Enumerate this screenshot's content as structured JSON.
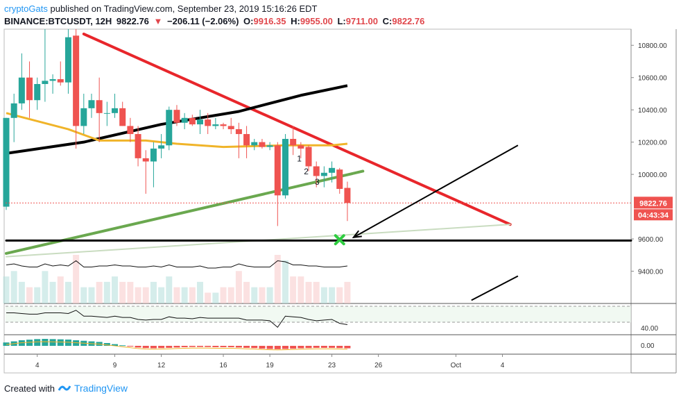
{
  "header": {
    "user": "cryptoGats",
    "published": "published on TradingView.com, September 23, 2019 15:16:26 EDT",
    "symbol": "BINANCE:BTCUSDT, 12H",
    "last": "9822.76",
    "change": "−206.11 (−2.06%)",
    "open_label": "O:",
    "open": "9916.35",
    "high_label": "H:",
    "high": "9955.00",
    "low_label": "L:",
    "low": "9711.00",
    "close_label": "C:",
    "close": "9822.76"
  },
  "footer": {
    "created_with": "Created with",
    "brand": "TradingView"
  },
  "colors": {
    "up": "#26a69a",
    "down": "#ef5350",
    "trend_red": "#e8262b",
    "trend_green": "#6aa84f",
    "ma_black": "#000000",
    "ma_yellow": "#f0b429",
    "cross": "#2ecc40"
  },
  "chart_data": {
    "type": "candlestick",
    "interval": "12H",
    "symbol": "BINANCE:BTCUSDT",
    "y_axis": {
      "min": 9200,
      "max": 10900,
      "ticks": [
        9400,
        9600,
        10000,
        10200,
        10400,
        10600,
        10800
      ],
      "tick_labels": [
        "9400.00",
        "9600.00",
        "10000.00",
        "10200.00",
        "10400.00",
        "10600.00",
        "10800.00"
      ]
    },
    "x_axis": {
      "ticks": [
        {
          "label": "4",
          "i": 4
        },
        {
          "label": "9",
          "i": 14
        },
        {
          "label": "12",
          "i": 20
        },
        {
          "label": "16",
          "i": 28
        },
        {
          "label": "19",
          "i": 34
        },
        {
          "label": "23",
          "i": 42
        },
        {
          "label": "26",
          "i": 48
        },
        {
          "label": "Oct",
          "i": 58
        },
        {
          "label": "4",
          "i": 64
        }
      ],
      "max_index": 66
    },
    "last_price_label": "9822.76",
    "countdown_label": "04:43:34",
    "candles": [
      {
        "o": 9800,
        "h": 10350,
        "l": 9780,
        "c": 10350
      },
      {
        "o": 10350,
        "h": 10500,
        "l": 10200,
        "c": 10440
      },
      {
        "o": 10440,
        "h": 10750,
        "l": 10400,
        "c": 10600
      },
      {
        "o": 10600,
        "h": 10700,
        "l": 10350,
        "c": 10460
      },
      {
        "o": 10460,
        "h": 10600,
        "l": 10400,
        "c": 10560
      },
      {
        "o": 10560,
        "h": 10900,
        "l": 10450,
        "c": 10580
      },
      {
        "o": 10580,
        "h": 10620,
        "l": 10500,
        "c": 10590
      },
      {
        "o": 10590,
        "h": 10700,
        "l": 10550,
        "c": 10570
      },
      {
        "o": 10570,
        "h": 10900,
        "l": 10500,
        "c": 10850
      },
      {
        "o": 10860,
        "h": 10900,
        "l": 10160,
        "c": 10300
      },
      {
        "o": 10300,
        "h": 10500,
        "l": 10250,
        "c": 10410
      },
      {
        "o": 10410,
        "h": 10500,
        "l": 10350,
        "c": 10460
      },
      {
        "o": 10460,
        "h": 10600,
        "l": 10200,
        "c": 10380
      },
      {
        "o": 10380,
        "h": 10450,
        "l": 10300,
        "c": 10380
      },
      {
        "o": 10380,
        "h": 10500,
        "l": 10350,
        "c": 10410
      },
      {
        "o": 10410,
        "h": 10450,
        "l": 10300,
        "c": 10300
      },
      {
        "o": 10300,
        "h": 10350,
        "l": 10200,
        "c": 10250
      },
      {
        "o": 10250,
        "h": 10300,
        "l": 10050,
        "c": 10100
      },
      {
        "o": 10100,
        "h": 10150,
        "l": 9880,
        "c": 10080
      },
      {
        "o": 10080,
        "h": 10200,
        "l": 9920,
        "c": 10160
      },
      {
        "o": 10160,
        "h": 10250,
        "l": 10100,
        "c": 10180
      },
      {
        "o": 10180,
        "h": 10420,
        "l": 10150,
        "c": 10400
      },
      {
        "o": 10400,
        "h": 10430,
        "l": 10300,
        "c": 10320
      },
      {
        "o": 10320,
        "h": 10380,
        "l": 10280,
        "c": 10350
      },
      {
        "o": 10350,
        "h": 10370,
        "l": 10300,
        "c": 10310
      },
      {
        "o": 10310,
        "h": 10400,
        "l": 10250,
        "c": 10340
      },
      {
        "o": 10340,
        "h": 10380,
        "l": 10250,
        "c": 10300
      },
      {
        "o": 10300,
        "h": 10350,
        "l": 10280,
        "c": 10310
      },
      {
        "o": 10310,
        "h": 10320,
        "l": 10280,
        "c": 10300
      },
      {
        "o": 10300,
        "h": 10350,
        "l": 10250,
        "c": 10280
      },
      {
        "o": 10280,
        "h": 10320,
        "l": 10100,
        "c": 10250
      },
      {
        "o": 10250,
        "h": 10300,
        "l": 10100,
        "c": 10180
      },
      {
        "o": 10180,
        "h": 10220,
        "l": 10150,
        "c": 10200
      },
      {
        "o": 10200,
        "h": 10220,
        "l": 10160,
        "c": 10170
      },
      {
        "o": 10170,
        "h": 10200,
        "l": 10150,
        "c": 10180
      },
      {
        "o": 10180,
        "h": 10200,
        "l": 9680,
        "c": 9870
      },
      {
        "o": 9870,
        "h": 10250,
        "l": 9850,
        "c": 10220
      },
      {
        "o": 10220,
        "h": 10300,
        "l": 10120,
        "c": 10180
      },
      {
        "o": 10180,
        "h": 10200,
        "l": 10100,
        "c": 10160
      },
      {
        "o": 10170,
        "h": 10180,
        "l": 10020,
        "c": 10050
      },
      {
        "o": 10050,
        "h": 10080,
        "l": 9920,
        "c": 9990
      },
      {
        "o": 9990,
        "h": 10050,
        "l": 9920,
        "c": 10010
      },
      {
        "o": 10010,
        "h": 10080,
        "l": 9950,
        "c": 10040
      },
      {
        "o": 10030,
        "h": 10040,
        "l": 9880,
        "c": 9910
      },
      {
        "o": 9916.35,
        "h": 9955,
        "l": 9711,
        "c": 9822.76
      }
    ],
    "moving_averages": [
      {
        "name": "MA black",
        "color": "#000000",
        "x": [
          0,
          10,
          20,
          30,
          38,
          44
        ],
        "values": [
          10130,
          10200,
          10310,
          10390,
          10490,
          10550
        ]
      },
      {
        "name": "MA yellow",
        "color": "#f0b429",
        "x": [
          0,
          4,
          8,
          12,
          18,
          22,
          28,
          36,
          42,
          44
        ],
        "values": [
          10380,
          10330,
          10280,
          10210,
          10210,
          10190,
          10170,
          10180,
          10180,
          10190
        ]
      }
    ],
    "trendlines": [
      {
        "name": "descending resistance",
        "color": "#e8262b",
        "from": [
          10,
          10870
        ],
        "to": [
          65,
          9690
        ]
      },
      {
        "name": "ascending support",
        "color": "#6aa84f",
        "from": [
          0,
          9510
        ],
        "to": [
          46,
          10020
        ]
      },
      {
        "name": "faint ascending support",
        "color": "#c9dcc0",
        "from": [
          0,
          9490
        ],
        "to": [
          65,
          9690
        ]
      },
      {
        "name": "horizontal support",
        "color": "#000000",
        "from": [
          0,
          9590
        ],
        "to": [
          66,
          9590
        ]
      }
    ],
    "arrows": [
      {
        "from": [
          66,
          10180
        ],
        "to": [
          44.8,
          9610
        ]
      },
      {
        "from": [
          66,
          9370
        ],
        "to": [
          60,
          9220
        ]
      }
    ],
    "marker": {
      "shape": "x",
      "color": "#2ecc40",
      "at": [
        43,
        9595
      ]
    },
    "wave_labels": [
      {
        "text": "1",
        "at": [
          37.5,
          10080
        ]
      },
      {
        "text": "2",
        "at": [
          38.4,
          10000
        ]
      },
      {
        "text": "3",
        "at": [
          39.8,
          9935
        ]
      }
    ],
    "volume": [
      5,
      6,
      4,
      3,
      3,
      6,
      4,
      5,
      4,
      9,
      3,
      3,
      4,
      4,
      5,
      4,
      4,
      3,
      3,
      4,
      3,
      5,
      3,
      3,
      3,
      4,
      2,
      2,
      3,
      3,
      6,
      4,
      3,
      3,
      3,
      9,
      8,
      5,
      5,
      4,
      4,
      3,
      3,
      3,
      4
    ],
    "rsi": {
      "label": "40.00",
      "values": [
        62,
        62,
        61,
        60,
        60,
        62,
        62,
        62,
        61,
        66,
        57,
        57,
        56,
        55,
        57,
        55,
        55,
        52,
        51,
        52,
        52,
        56,
        54,
        54,
        53,
        55,
        54,
        54,
        54,
        54,
        54,
        51,
        51,
        51,
        50,
        40,
        57,
        56,
        55,
        52,
        50,
        51,
        52,
        46,
        44
      ]
    },
    "macd": {
      "label": "0.00",
      "histogram": [
        30,
        40,
        50,
        55,
        60,
        62,
        60,
        58,
        56,
        50,
        45,
        40,
        35,
        25,
        15,
        5,
        -5,
        -15,
        -20,
        -22,
        -20,
        -18,
        -15,
        -12,
        -10,
        -10,
        -10,
        -12,
        -12,
        -12,
        -15,
        -18,
        -20,
        -25,
        -28,
        -30,
        -28,
        -25,
        -22,
        -20,
        -18,
        -18,
        -18,
        -20,
        -22
      ]
    }
  }
}
